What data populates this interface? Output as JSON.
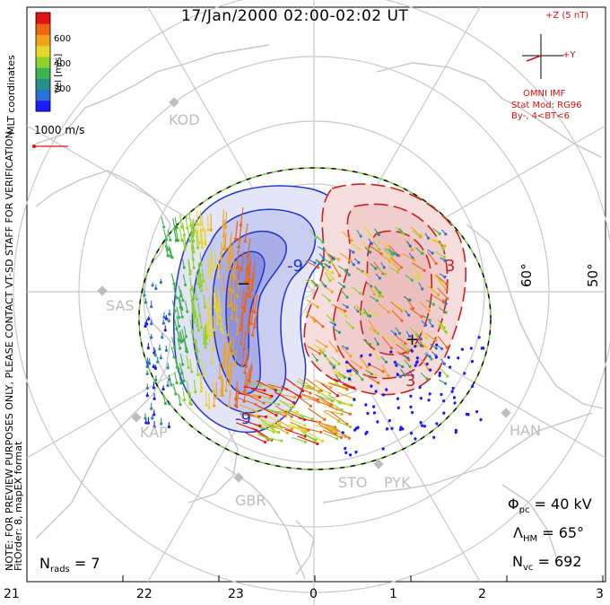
{
  "title": "17/Jan/2000 02:00-02:02 UT",
  "side_text": {
    "coords": "MLT coordinates",
    "note": "NOTE: FOR PREVIEW PURPOSES ONLY, PLEASE CONTACT VT-SD STAFF FOR VERIFICATION.",
    "fit": "FitOrder: 8, mapEX format"
  },
  "colorbar": {
    "label": "Vel [m/s]",
    "ticks": [
      "600",
      "400",
      "200"
    ],
    "colors": [
      "#1a1aff",
      "#2d6fd6",
      "#2a8f8a",
      "#3fb34f",
      "#8fd12f",
      "#e8d42a",
      "#f2a21a",
      "#f06414",
      "#e01212"
    ]
  },
  "vector_scale": "1000 m/s",
  "imf": {
    "z_label": "+Z (5 nT)",
    "y_label": "+Y",
    "source": "OMNI IMF",
    "model": "Stat Mod: RG96",
    "condition": "By-, 4<BT<6"
  },
  "mlt_labels": [
    "21",
    "22",
    "23",
    "0",
    "1",
    "2",
    "3"
  ],
  "lat_labels": [
    "60°",
    "50°"
  ],
  "radar_sites": [
    "KOD",
    "SAS",
    "KAP",
    "GBR",
    "STO",
    "PYK",
    "HAN"
  ],
  "contour_labels": [
    "-9",
    "-9",
    "3",
    "3"
  ],
  "potential_marks": {
    "min": "−",
    "max": "+"
  },
  "stats": {
    "phi_pc_label": "Φ",
    "phi_pc_sub": "pc",
    "phi_pc_value": " = 40 kV",
    "lambda_hm_label": "Λ",
    "lambda_hm_sub": "HM",
    "lambda_hm_value": " = 65°",
    "n_vc_label": "N",
    "n_vc_sub": "vc",
    "n_vc_value": " = 692",
    "n_rads_label": "N",
    "n_rads_sub": "rads",
    "n_rads_value": " = 7"
  },
  "colors": {
    "negative_cell": "#1d35c9",
    "positive_cell": "#c8221c",
    "boundary_dash": "#7ac943",
    "grid": "#c8c8c8",
    "coast": "#c6c6c6",
    "imf_red": "#d11111"
  }
}
